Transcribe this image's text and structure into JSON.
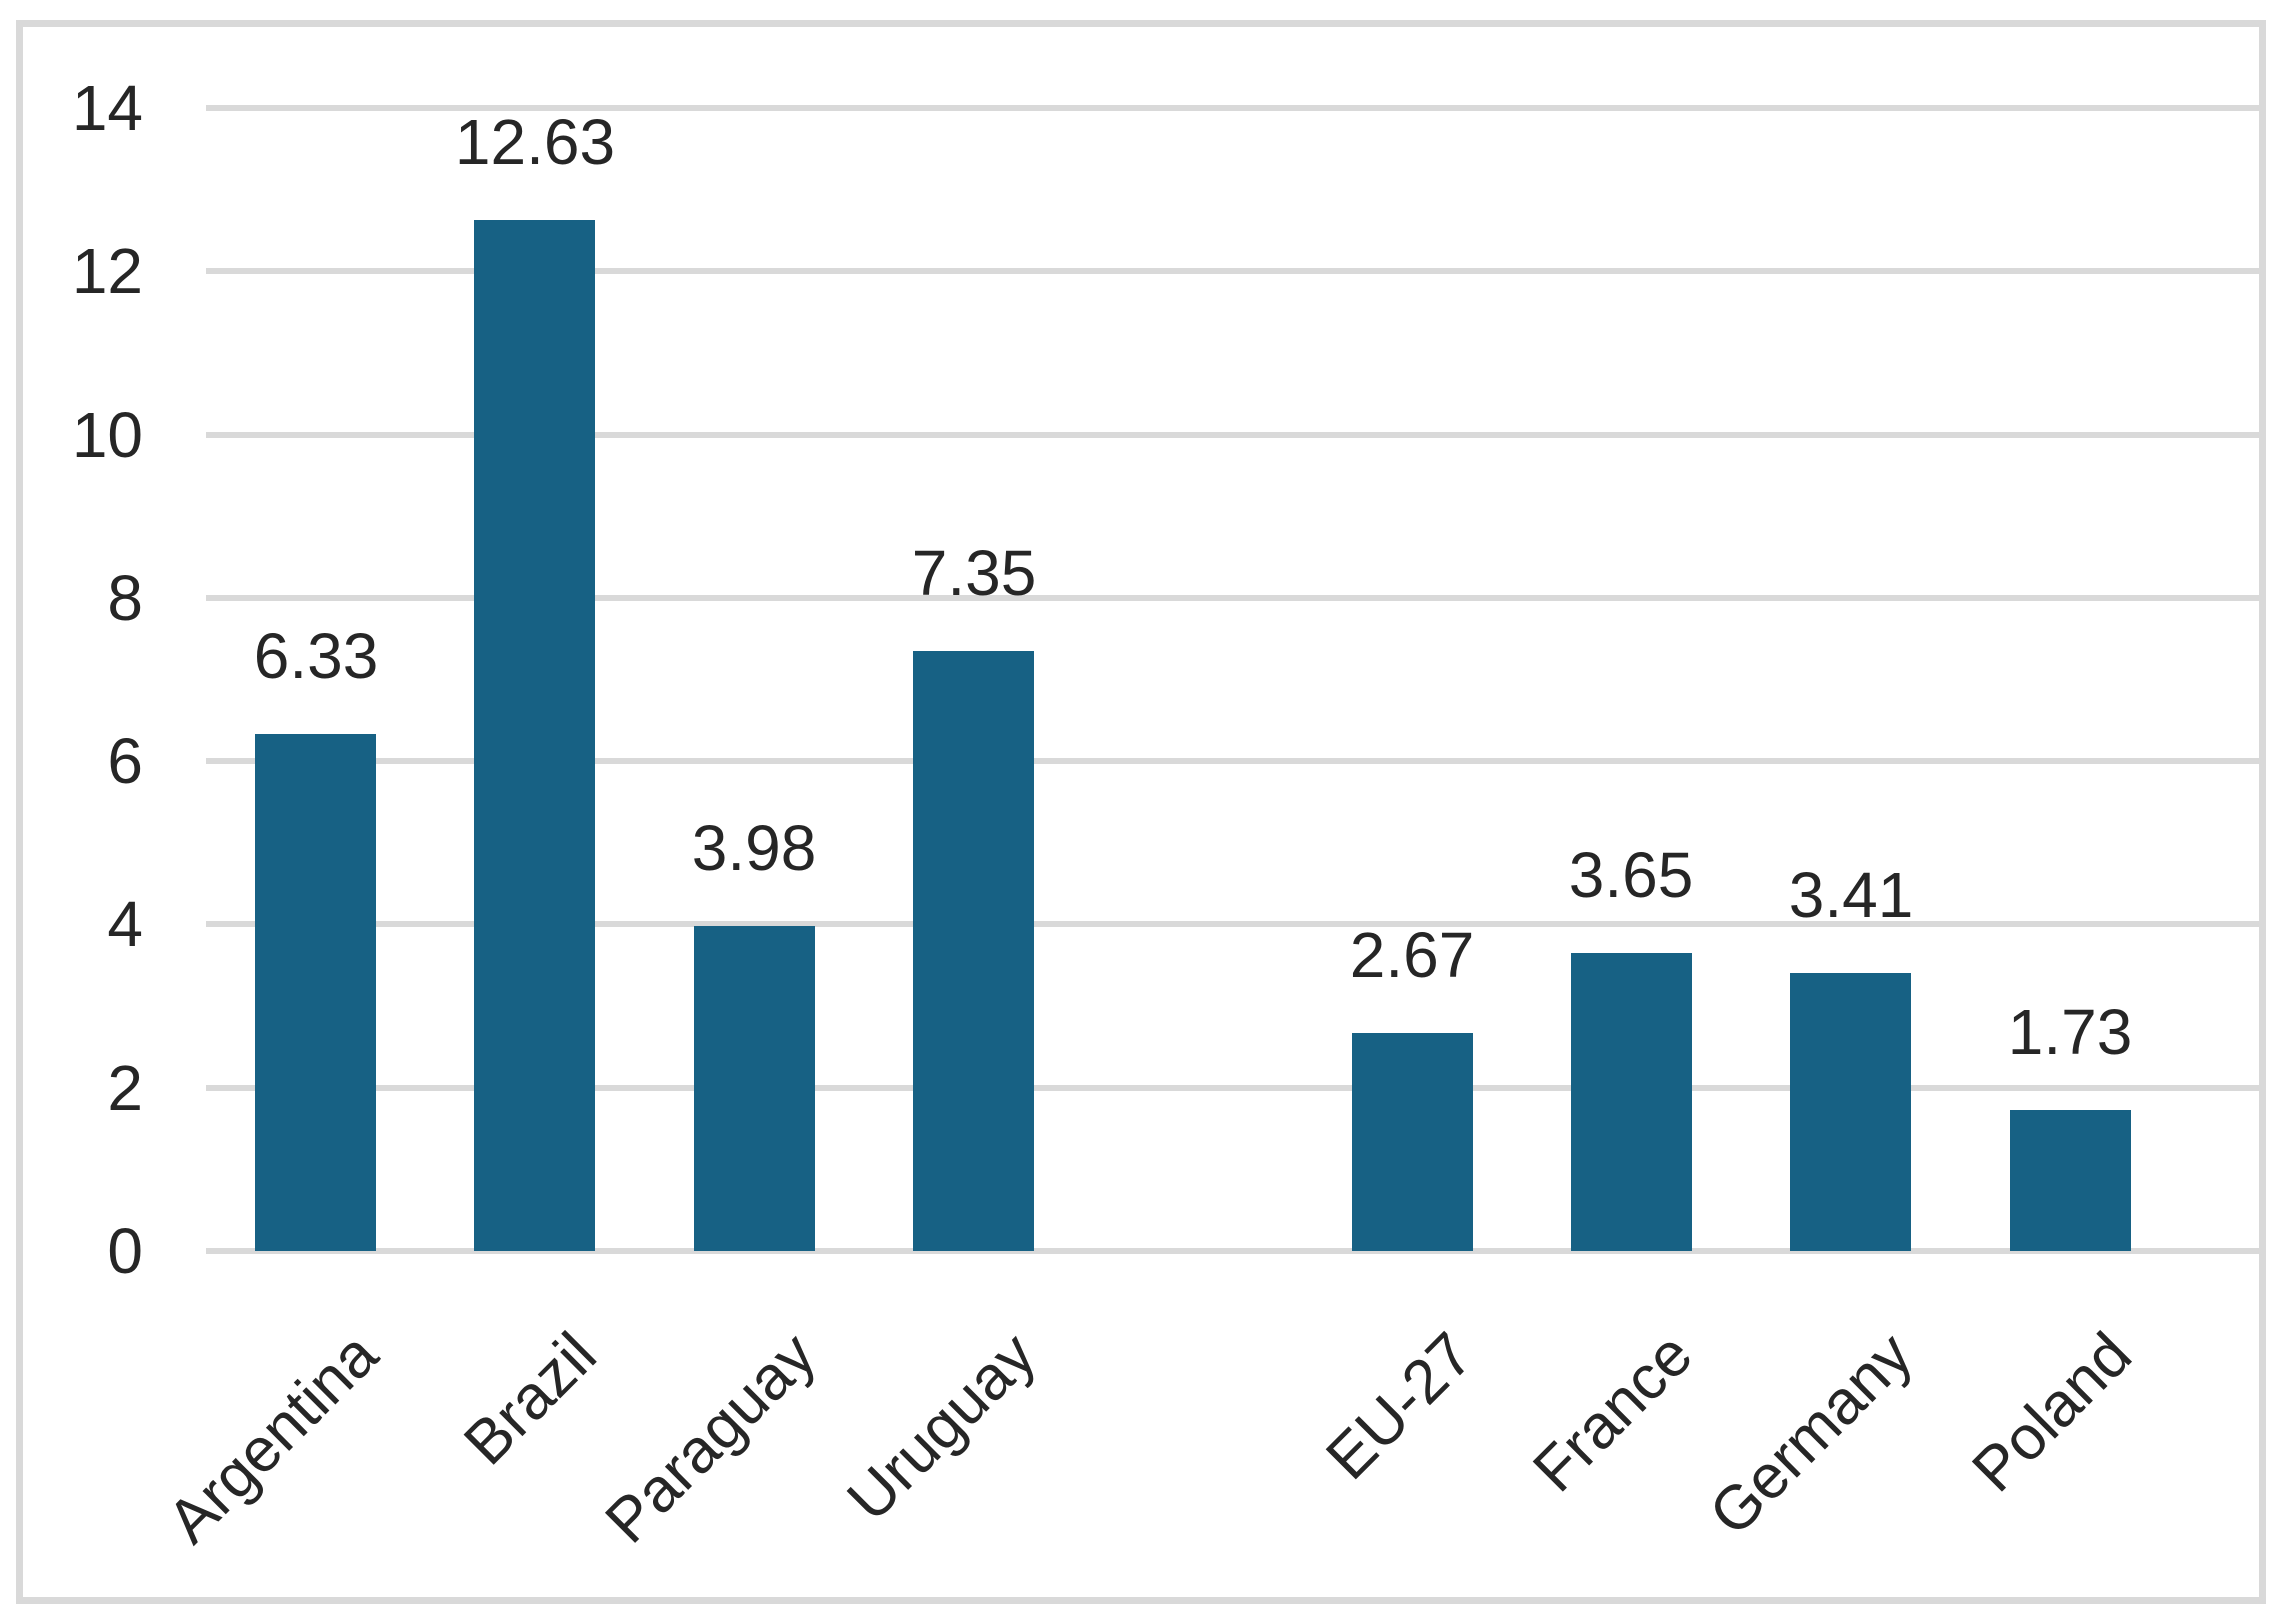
{
  "chart_data": {
    "type": "bar",
    "title": "",
    "xlabel": "",
    "ylabel": "",
    "categories": [
      "Argentina",
      "Brazil",
      "Paraguay",
      "Uruguay",
      "",
      "EU-27",
      "France",
      "Germany",
      "Poland"
    ],
    "values": [
      6.33,
      12.63,
      3.98,
      7.35,
      null,
      2.67,
      3.65,
      3.41,
      1.73
    ],
    "data_labels": [
      "6.33",
      "12.63",
      "3.98",
      "7.35",
      "",
      "2.67",
      "3.65",
      "3.41",
      "1.73"
    ],
    "ylim": [
      0,
      14
    ],
    "yticks": [
      0,
      2,
      4,
      6,
      8,
      10,
      12,
      14
    ],
    "ytick_labels": [
      "0",
      "2",
      "4",
      "6",
      "8",
      "10",
      "12",
      "14"
    ],
    "grid": true,
    "legend": false,
    "x_label_rotation_deg": 45,
    "colors": {
      "bar": "#176184",
      "gridline": "#d9d9d9",
      "frame_border": "#d9d9d9",
      "text": "#262626",
      "background": "#ffffff"
    }
  }
}
